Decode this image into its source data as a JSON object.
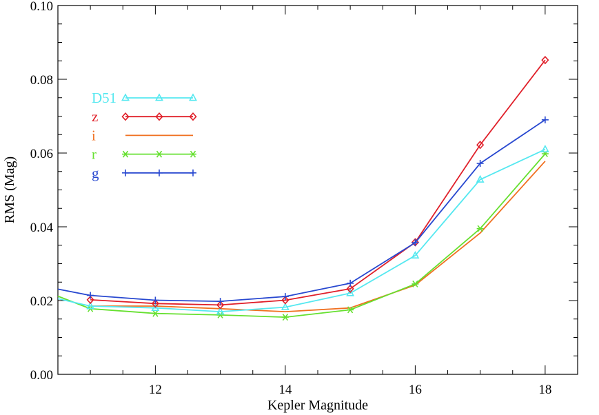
{
  "chart_data": {
    "type": "line",
    "xlabel": "Kepler Magnitude",
    "ylabel": "RMS (Mag)",
    "xlim": [
      10.5,
      18.5
    ],
    "ylim": [
      0.0,
      0.1
    ],
    "x_ticks": [
      "12",
      "14",
      "16",
      "18"
    ],
    "y_ticks": [
      "0.00",
      "0.02",
      "0.04",
      "0.06",
      "0.08",
      "0.10"
    ],
    "x_tick_values": [
      12,
      14,
      16,
      18
    ],
    "y_tick_values": [
      0.0,
      0.02,
      0.04,
      0.06,
      0.08,
      0.1
    ],
    "x_minor_step": 0.5,
    "y_minor_step": 0.005,
    "legend_position": "upper-left",
    "series": [
      {
        "name": "D51",
        "color": "#55e8f0",
        "marker": "triangle",
        "x": [
          10.5,
          11,
          12,
          13,
          14,
          15,
          16,
          17,
          18
        ],
        "y": [
          0.0205,
          0.0185,
          0.018,
          0.017,
          0.0182,
          0.022,
          0.0322,
          0.0528,
          0.061
        ]
      },
      {
        "name": "z",
        "color": "#e0202a",
        "marker": "diamond",
        "x": [
          11,
          12,
          13,
          14,
          15,
          16,
          17,
          18
        ],
        "y": [
          0.0202,
          0.0192,
          0.0188,
          0.0201,
          0.0232,
          0.0358,
          0.0622,
          0.0852
        ]
      },
      {
        "name": "i",
        "color": "#f07020",
        "marker": "none",
        "x": [
          11,
          12,
          13,
          14,
          15,
          16,
          17,
          18
        ],
        "y": [
          0.0185,
          0.0185,
          0.0178,
          0.017,
          0.018,
          0.0242,
          0.0383,
          0.0578
        ]
      },
      {
        "name": "r",
        "color": "#66e030",
        "marker": "asterisk",
        "x": [
          10.5,
          11,
          12,
          13,
          14,
          15,
          16,
          17,
          18
        ],
        "y": [
          0.0212,
          0.0178,
          0.0165,
          0.0161,
          0.0155,
          0.0175,
          0.0245,
          0.0395,
          0.0598
        ]
      },
      {
        "name": "g",
        "color": "#2848d0",
        "marker": "plus",
        "x": [
          10.5,
          11,
          12,
          13,
          14,
          15,
          16,
          17,
          18
        ],
        "y": [
          0.0231,
          0.0214,
          0.0201,
          0.0198,
          0.0211,
          0.0247,
          0.0357,
          0.0572,
          0.069
        ]
      }
    ]
  }
}
